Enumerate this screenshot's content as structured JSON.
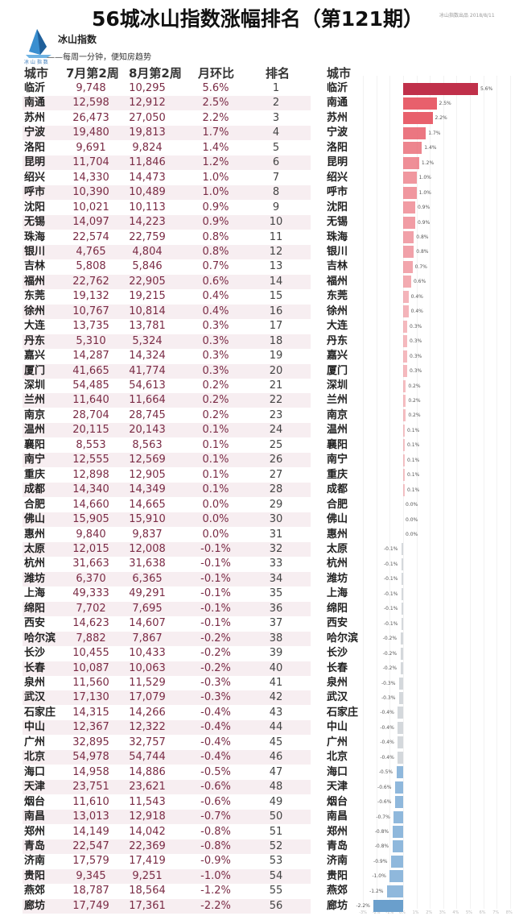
{
  "title": "56城冰山指数涨幅排名（第121期）",
  "meta": "冰山指数出品 2018/8/11",
  "brand": {
    "name": "冰山指数",
    "slogan": "——每周一分钟，便知房趋势",
    "logo_text": "冰山指数"
  },
  "headers": {
    "city": "城市",
    "jul": "7月第2周",
    "aug": "8月第2周",
    "pct": "月环比",
    "rank": "排名",
    "city2": "城市"
  },
  "colors": {
    "positive": "#e8606c",
    "positive_top": "#c0304a",
    "negative": "#8fb8dc",
    "negative_bottom": "#6a9fcc",
    "row_alt": "#f7eef1"
  },
  "rows": [
    [
      "临沂",
      "9,748",
      "10,295",
      "5.6%",
      "1"
    ],
    [
      "南通",
      "12,598",
      "12,912",
      "2.5%",
      "2"
    ],
    [
      "苏州",
      "26,473",
      "27,050",
      "2.2%",
      "3"
    ],
    [
      "宁波",
      "19,480",
      "19,813",
      "1.7%",
      "4"
    ],
    [
      "洛阳",
      "9,691",
      "9,824",
      "1.4%",
      "5"
    ],
    [
      "昆明",
      "11,704",
      "11,846",
      "1.2%",
      "6"
    ],
    [
      "绍兴",
      "14,330",
      "14,473",
      "1.0%",
      "7"
    ],
    [
      "呼市",
      "10,390",
      "10,489",
      "1.0%",
      "8"
    ],
    [
      "沈阳",
      "10,021",
      "10,113",
      "0.9%",
      "9"
    ],
    [
      "无锡",
      "14,097",
      "14,223",
      "0.9%",
      "10"
    ],
    [
      "珠海",
      "22,574",
      "22,759",
      "0.8%",
      "11"
    ],
    [
      "银川",
      "4,765",
      "4,804",
      "0.8%",
      "12"
    ],
    [
      "吉林",
      "5,808",
      "5,846",
      "0.7%",
      "13"
    ],
    [
      "福州",
      "22,762",
      "22,905",
      "0.6%",
      "14"
    ],
    [
      "东莞",
      "19,132",
      "19,215",
      "0.4%",
      "15"
    ],
    [
      "徐州",
      "10,767",
      "10,814",
      "0.4%",
      "16"
    ],
    [
      "大连",
      "13,735",
      "13,781",
      "0.3%",
      "17"
    ],
    [
      "丹东",
      "5,310",
      "5,324",
      "0.3%",
      "18"
    ],
    [
      "嘉兴",
      "14,287",
      "14,324",
      "0.3%",
      "19"
    ],
    [
      "厦门",
      "41,665",
      "41,774",
      "0.3%",
      "20"
    ],
    [
      "深圳",
      "54,485",
      "54,613",
      "0.2%",
      "21"
    ],
    [
      "兰州",
      "11,640",
      "11,664",
      "0.2%",
      "22"
    ],
    [
      "南京",
      "28,704",
      "28,745",
      "0.2%",
      "23"
    ],
    [
      "温州",
      "20,115",
      "20,143",
      "0.1%",
      "24"
    ],
    [
      "襄阳",
      "8,553",
      "8,563",
      "0.1%",
      "25"
    ],
    [
      "南宁",
      "12,555",
      "12,569",
      "0.1%",
      "26"
    ],
    [
      "重庆",
      "12,898",
      "12,905",
      "0.1%",
      "27"
    ],
    [
      "成都",
      "14,340",
      "14,349",
      "0.1%",
      "28"
    ],
    [
      "合肥",
      "14,660",
      "14,665",
      "0.0%",
      "29"
    ],
    [
      "佛山",
      "15,905",
      "15,910",
      "0.0%",
      "30"
    ],
    [
      "惠州",
      "9,840",
      "9,837",
      "0.0%",
      "31"
    ],
    [
      "太原",
      "12,015",
      "12,008",
      "-0.1%",
      "32"
    ],
    [
      "杭州",
      "31,663",
      "31,638",
      "-0.1%",
      "33"
    ],
    [
      "潍坊",
      "6,370",
      "6,365",
      "-0.1%",
      "34"
    ],
    [
      "上海",
      "49,333",
      "49,291",
      "-0.1%",
      "35"
    ],
    [
      "绵阳",
      "7,702",
      "7,695",
      "-0.1%",
      "36"
    ],
    [
      "西安",
      "14,623",
      "14,607",
      "-0.1%",
      "37"
    ],
    [
      "哈尔滨",
      "7,882",
      "7,867",
      "-0.2%",
      "38"
    ],
    [
      "长沙",
      "10,455",
      "10,433",
      "-0.2%",
      "39"
    ],
    [
      "长春",
      "10,087",
      "10,063",
      "-0.2%",
      "40"
    ],
    [
      "泉州",
      "11,560",
      "11,529",
      "-0.3%",
      "41"
    ],
    [
      "武汉",
      "17,130",
      "17,079",
      "-0.3%",
      "42"
    ],
    [
      "石家庄",
      "14,315",
      "14,266",
      "-0.4%",
      "43"
    ],
    [
      "中山",
      "12,367",
      "12,322",
      "-0.4%",
      "44"
    ],
    [
      "广州",
      "32,895",
      "32,757",
      "-0.4%",
      "45"
    ],
    [
      "北京",
      "54,978",
      "54,744",
      "-0.4%",
      "46"
    ],
    [
      "海口",
      "14,958",
      "14,886",
      "-0.5%",
      "47"
    ],
    [
      "天津",
      "23,751",
      "23,621",
      "-0.6%",
      "48"
    ],
    [
      "烟台",
      "11,610",
      "11,543",
      "-0.6%",
      "49"
    ],
    [
      "南昌",
      "13,013",
      "12,918",
      "-0.7%",
      "50"
    ],
    [
      "郑州",
      "14,149",
      "14,042",
      "-0.8%",
      "51"
    ],
    [
      "青岛",
      "22,547",
      "22,369",
      "-0.8%",
      "52"
    ],
    [
      "济南",
      "17,579",
      "17,419",
      "-0.9%",
      "53"
    ],
    [
      "贵阳",
      "9,345",
      "9,251",
      "-1.0%",
      "54"
    ],
    [
      "燕郊",
      "18,787",
      "18,564",
      "-1.2%",
      "55"
    ],
    [
      "廊坊",
      "17,749",
      "17,361",
      "-2.2%",
      "56"
    ]
  ],
  "chart_data": {
    "type": "bar",
    "orientation": "horizontal",
    "categories": [
      "临沂",
      "南通",
      "苏州",
      "宁波",
      "洛阳",
      "昆明",
      "绍兴",
      "呼市",
      "沈阳",
      "无锡",
      "珠海",
      "银川",
      "吉林",
      "福州",
      "东莞",
      "徐州",
      "大连",
      "丹东",
      "嘉兴",
      "厦门",
      "深圳",
      "兰州",
      "南京",
      "温州",
      "襄阳",
      "南宁",
      "重庆",
      "成都",
      "合肥",
      "佛山",
      "惠州",
      "太原",
      "杭州",
      "潍坊",
      "上海",
      "绵阳",
      "西安",
      "哈尔滨",
      "长沙",
      "长春",
      "泉州",
      "武汉",
      "石家庄",
      "中山",
      "广州",
      "北京",
      "海口",
      "天津",
      "烟台",
      "南昌",
      "郑州",
      "青岛",
      "济南",
      "贵阳",
      "燕郊",
      "廊坊"
    ],
    "values": [
      5.6,
      2.5,
      2.2,
      1.7,
      1.4,
      1.2,
      1.0,
      1.0,
      0.9,
      0.9,
      0.8,
      0.8,
      0.7,
      0.6,
      0.4,
      0.4,
      0.3,
      0.3,
      0.3,
      0.3,
      0.2,
      0.2,
      0.2,
      0.1,
      0.1,
      0.1,
      0.1,
      0.1,
      0.0,
      0.0,
      0.0,
      -0.1,
      -0.1,
      -0.1,
      -0.1,
      -0.1,
      -0.1,
      -0.2,
      -0.2,
      -0.2,
      -0.3,
      -0.3,
      -0.4,
      -0.4,
      -0.4,
      -0.4,
      -0.5,
      -0.6,
      -0.6,
      -0.7,
      -0.8,
      -0.8,
      -0.9,
      -1.0,
      -1.2,
      -2.2
    ],
    "unit": "%",
    "xlim": [
      -3,
      8
    ],
    "grid": true
  }
}
